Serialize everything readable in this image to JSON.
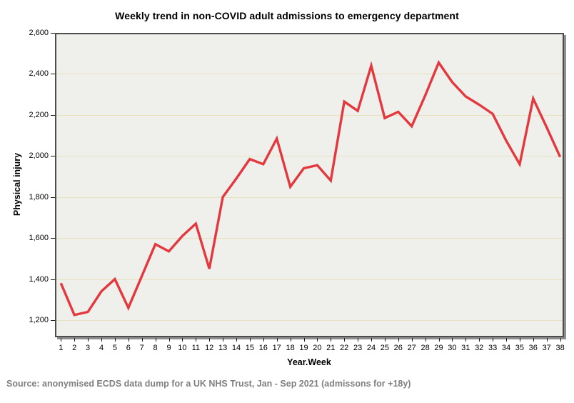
{
  "chart_data": {
    "type": "line",
    "title": "Weekly trend in non-COVID adult admissions to emergency department",
    "xlabel": "Year.Week",
    "ylabel": "Physical injury",
    "x": [
      1,
      2,
      3,
      4,
      5,
      6,
      7,
      8,
      9,
      10,
      11,
      12,
      13,
      14,
      15,
      16,
      17,
      18,
      19,
      20,
      21,
      22,
      23,
      24,
      25,
      26,
      27,
      28,
      29,
      30,
      31,
      32,
      33,
      34,
      35,
      36,
      37,
      38
    ],
    "values": [
      1380,
      1225,
      1240,
      1340,
      1400,
      1260,
      1415,
      1570,
      1535,
      1610,
      1670,
      1450,
      1800,
      1890,
      1985,
      1960,
      2085,
      1850,
      1940,
      1955,
      1880,
      2265,
      2220,
      2440,
      2185,
      2215,
      2145,
      2295,
      2455,
      2360,
      2290,
      2250,
      2205,
      2075,
      1960,
      2280,
      2140,
      1995
    ],
    "ylim": [
      1200,
      2600
    ],
    "yticks": [
      1200,
      1400,
      1600,
      1800,
      2000,
      2200,
      2400,
      2600
    ],
    "ytick_labels": [
      "1,200",
      "1,400",
      "1,600",
      "1,800",
      "2,000",
      "2,200",
      "2,400",
      "2,600"
    ],
    "grid": "horizontal",
    "legend": "none",
    "line_color": "#E2383E",
    "plot_bg_color": "#EFEFEC",
    "gridline_color": "#E6E2C0",
    "frame_color": "#4D4D4D"
  },
  "source_note": "Source: anonymised ECDS data dump for a UK NHS Trust, Jan - Sep 2021 (admissons for +18y)"
}
